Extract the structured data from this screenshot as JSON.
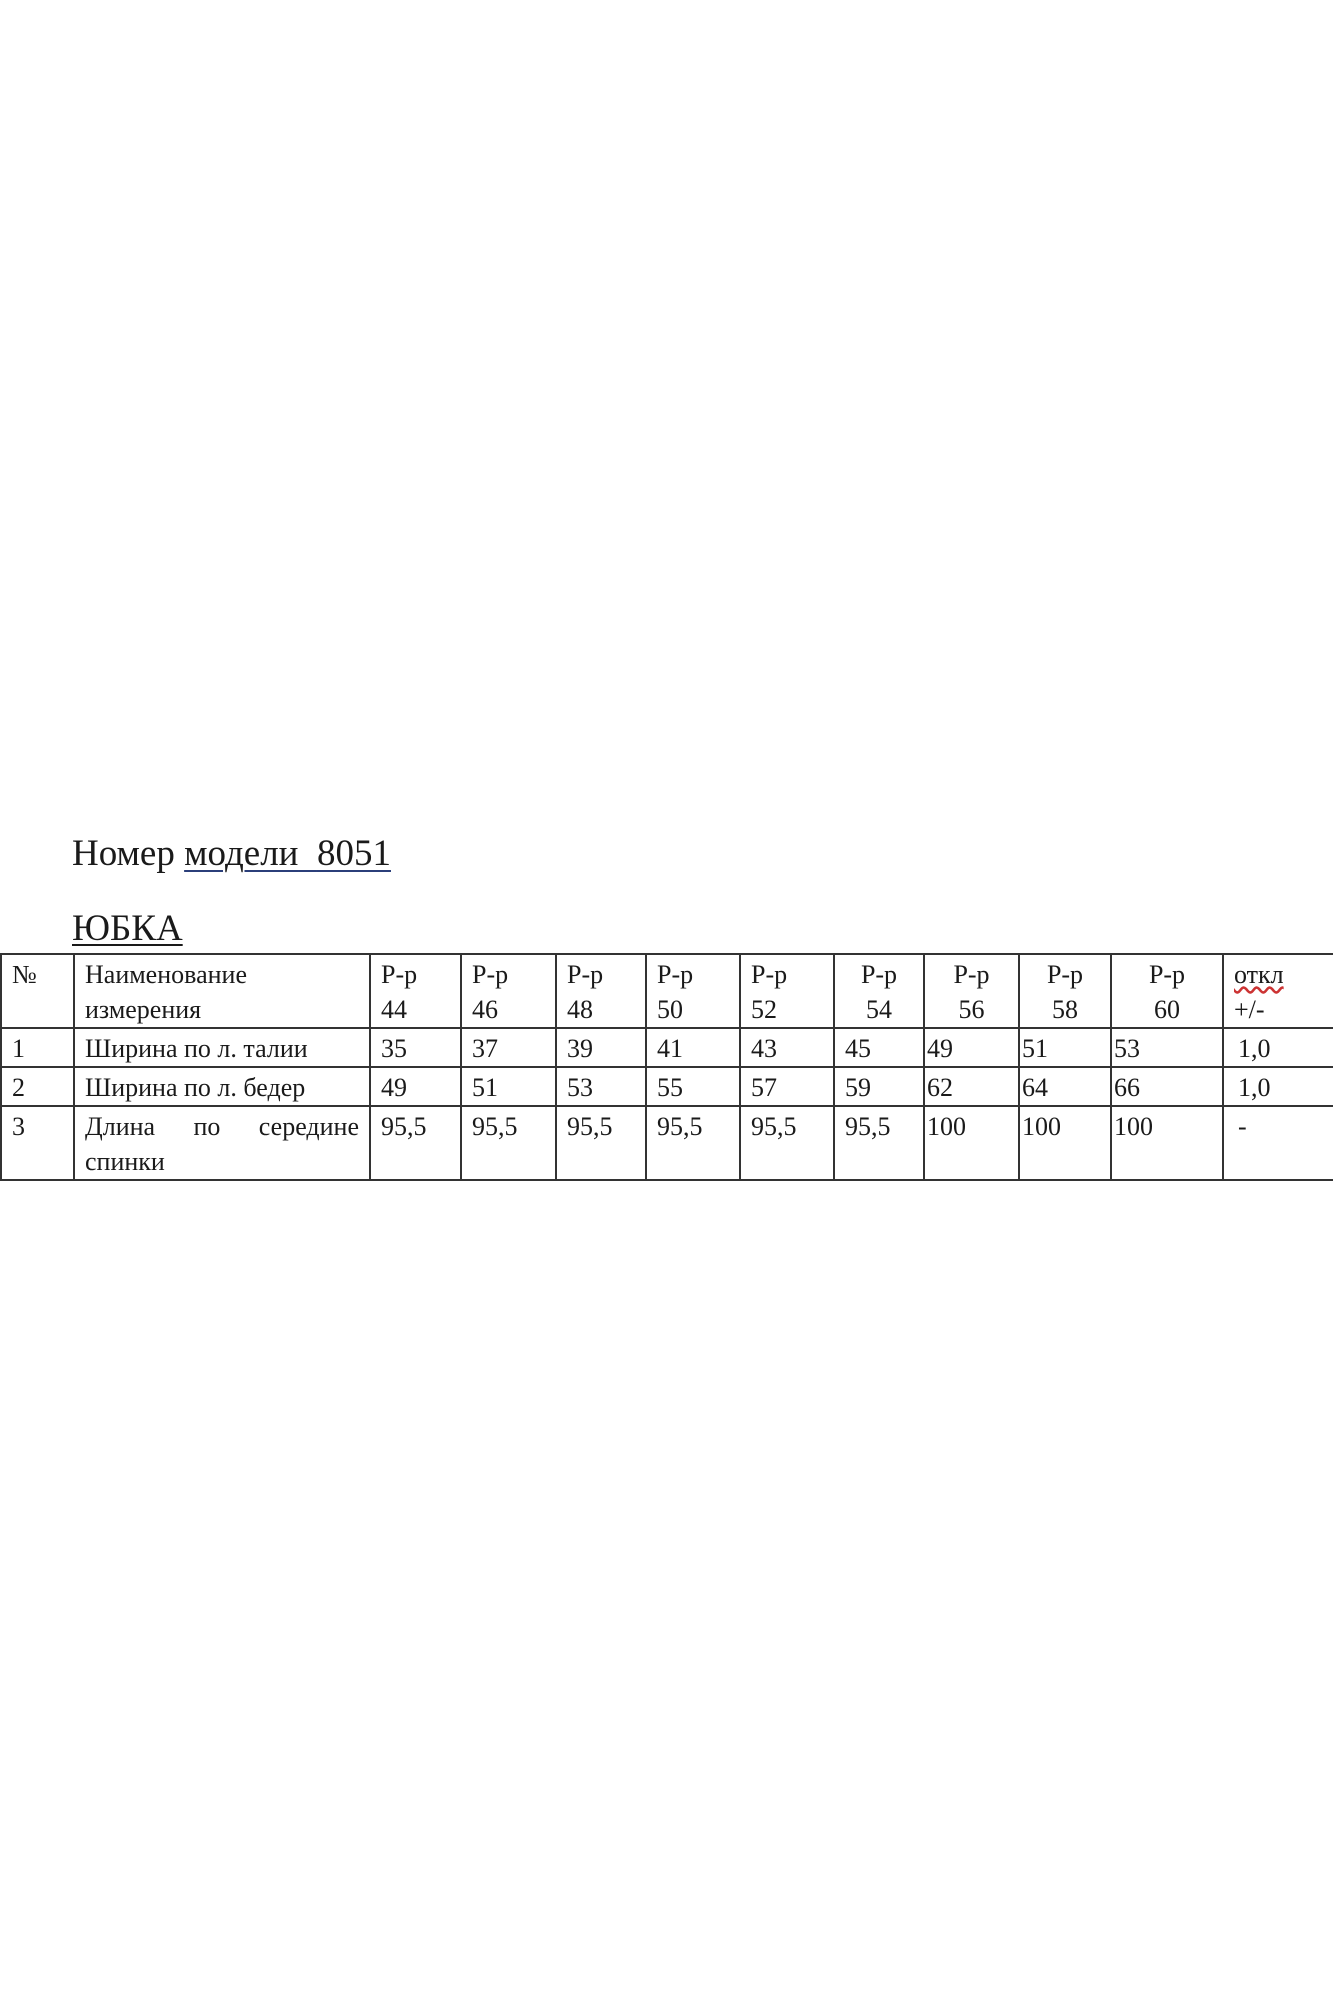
{
  "document": {
    "title_prefix": "Номер",
    "title_label": "модели",
    "model_number": "8051",
    "subtitle": "ЮБКА"
  },
  "table": {
    "headers": {
      "number": "№",
      "name_line1": "Наименование",
      "name_line2": "измерения",
      "sizes": [
        {
          "label": "Р-р",
          "size": "44"
        },
        {
          "label": "Р-р",
          "size": "46"
        },
        {
          "label": "Р-р",
          "size": "48"
        },
        {
          "label": "Р-р",
          "size": "50"
        },
        {
          "label": "Р-р",
          "size": "52"
        },
        {
          "label": "Р-р",
          "size": "54"
        },
        {
          "label": "Р-р",
          "size": "56"
        },
        {
          "label": "Р-р",
          "size": "58"
        },
        {
          "label": "Р-р",
          "size": "60"
        }
      ],
      "tolerance_line1": "откл",
      "tolerance_line2": "+/-"
    },
    "rows": [
      {
        "no": "1",
        "name": "Ширина по л. талии",
        "name2": "",
        "values": [
          "35",
          "37",
          "39",
          "41",
          "43",
          "45",
          "49",
          "51",
          "53"
        ],
        "tolerance": "1,0"
      },
      {
        "no": "2",
        "name": "Ширина по л. бедер",
        "name2": "",
        "values": [
          "49",
          "51",
          "53",
          "55",
          "57",
          "59",
          "62",
          "64",
          "66"
        ],
        "tolerance": "1,0"
      },
      {
        "no": "3",
        "name": "Длина по середине",
        "name2": "спинки",
        "values": [
          "95,5",
          "95,5",
          "95,5",
          "95,5",
          "95,5",
          "95,5",
          "100",
          "100",
          "100"
        ],
        "tolerance": "-"
      }
    ]
  }
}
